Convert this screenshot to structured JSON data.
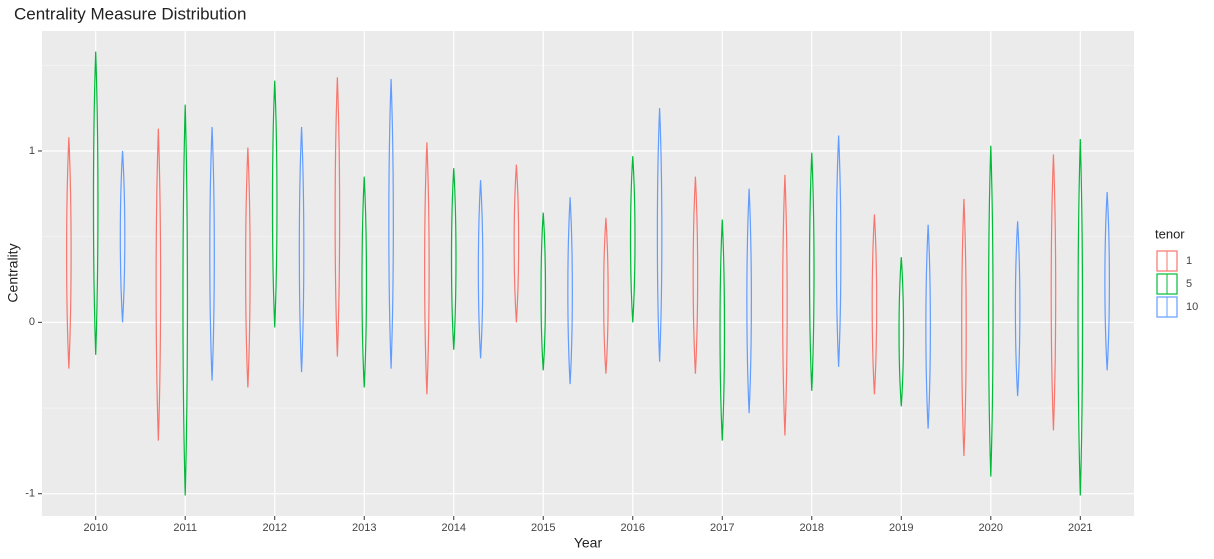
{
  "chart_data": {
    "type": "violin",
    "title": "Centrality Measure Distribution",
    "x_label": "Year",
    "y_label": "Centrality",
    "legend_title": "tenor",
    "legend_position": "right",
    "grid": true,
    "categories": [
      "2010",
      "2011",
      "2012",
      "2013",
      "2014",
      "2015",
      "2016",
      "2017",
      "2018",
      "2019",
      "2020",
      "2021"
    ],
    "ylim": [
      -1.13,
      1.7
    ],
    "yticks": [
      -1,
      0,
      1
    ],
    "series": [
      {
        "name": "1",
        "color": "#f8766d",
        "low": [
          -0.27,
          -0.69,
          -0.38,
          -0.2,
          -0.42,
          0,
          -0.3,
          -0.3,
          -0.66,
          -0.42,
          -0.78,
          -0.63
        ],
        "high": [
          1.08,
          1.13,
          1.02,
          1.43,
          1.05,
          0.92,
          0.61,
          0.85,
          0.86,
          0.63,
          0.72,
          0.98
        ]
      },
      {
        "name": "5",
        "color": "#00ba38",
        "low": [
          -0.19,
          -1.01,
          -0.03,
          -0.38,
          -0.16,
          -0.28,
          0,
          -0.69,
          -0.4,
          -0.49,
          -0.9,
          -1.01
        ],
        "high": [
          1.58,
          1.27,
          1.41,
          0.85,
          0.9,
          0.64,
          0.97,
          0.6,
          0.99,
          0.38,
          1.03,
          1.07
        ]
      },
      {
        "name": "10",
        "color": "#619cff",
        "low": [
          0,
          -0.34,
          -0.29,
          -0.27,
          -0.21,
          -0.36,
          -0.23,
          -0.53,
          -0.26,
          -0.62,
          -0.43,
          -0.28
        ],
        "high": [
          1.0,
          1.14,
          1.14,
          1.42,
          0.83,
          0.73,
          1.25,
          0.78,
          1.09,
          0.57,
          0.59,
          0.76
        ]
      }
    ]
  }
}
